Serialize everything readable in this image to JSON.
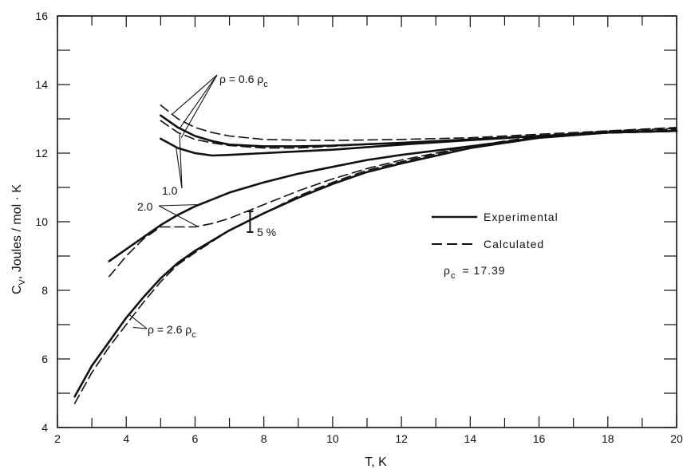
{
  "chart_data": {
    "type": "line",
    "title": "",
    "xlabel": "T, K",
    "ylabel": "C",
    "ylabel_sub": "V",
    "ylabel_rest": ", Joules / mol · K",
    "xlim": [
      2,
      20
    ],
    "ylim": [
      4,
      16
    ],
    "xticks": [
      2,
      4,
      6,
      8,
      10,
      12,
      14,
      16,
      18,
      20
    ],
    "yticks": [
      4,
      6,
      8,
      10,
      12,
      14,
      16
    ],
    "xticks_labels": [
      "2",
      "4",
      "6",
      "8",
      "10",
      "12",
      "14",
      "16",
      "18",
      "20"
    ],
    "yticks_labels": [
      "4",
      "6",
      "8",
      "10",
      "12",
      "14",
      "16"
    ],
    "grid": false,
    "legend": {
      "position": "right",
      "entries": [
        {
          "label": "Experimental",
          "style": "solid"
        },
        {
          "label": "Calculated",
          "style": "dashed"
        }
      ],
      "note_symbol": "ρ",
      "note_sub": "c",
      "note_value": "= 17.39"
    },
    "annotations": {
      "rho06_prefix": "ρ = 0.6 ρ",
      "rho06_sub": "c",
      "rho10": "1.0",
      "rho20": "2.0",
      "rho26_prefix": "ρ = 2.6 ρ",
      "rho26_sub": "c",
      "errorbar": "5 %"
    },
    "series": [
      {
        "name": "0.6",
        "style": "solid",
        "x": [
          5.0,
          5.5,
          6.0,
          6.5,
          7,
          8,
          9,
          10,
          12,
          14,
          16,
          18,
          20
        ],
        "y": [
          13.1,
          12.75,
          12.5,
          12.35,
          12.25,
          12.2,
          12.2,
          12.22,
          12.3,
          12.4,
          12.5,
          12.6,
          12.65
        ]
      },
      {
        "name": "0.6",
        "style": "dashed",
        "x": [
          5.0,
          5.5,
          6.0,
          6.5,
          7,
          8,
          9,
          10,
          12,
          14,
          16,
          18,
          20
        ],
        "y": [
          13.4,
          13.0,
          12.75,
          12.6,
          12.5,
          12.4,
          12.38,
          12.37,
          12.4,
          12.45,
          12.55,
          12.65,
          12.75
        ]
      },
      {
        "name": "1.0",
        "style": "solid",
        "x": [
          5.0,
          5.5,
          6.0,
          6.5,
          7,
          8,
          9,
          10,
          12,
          14,
          16,
          18,
          20
        ],
        "y": [
          12.42,
          12.15,
          12.0,
          11.93,
          11.95,
          12.0,
          12.05,
          12.1,
          12.25,
          12.38,
          12.5,
          12.6,
          12.65
        ]
      },
      {
        "name": "1.0",
        "style": "dashed",
        "x": [
          5.0,
          5.5,
          6.0,
          6.5,
          7,
          8,
          9,
          10,
          12,
          14,
          16,
          18,
          20
        ],
        "y": [
          12.95,
          12.6,
          12.4,
          12.3,
          12.22,
          12.15,
          12.15,
          12.2,
          12.3,
          12.4,
          12.5,
          12.62,
          12.7
        ]
      },
      {
        "name": "2.0",
        "style": "solid",
        "x": [
          3.5,
          4.0,
          4.5,
          5.0,
          5.5,
          6,
          7,
          8,
          9,
          10,
          11,
          12,
          14,
          16,
          18,
          20
        ],
        "y": [
          8.85,
          9.2,
          9.55,
          9.9,
          10.2,
          10.45,
          10.85,
          11.15,
          11.4,
          11.6,
          11.8,
          11.95,
          12.2,
          12.45,
          12.6,
          12.65
        ]
      },
      {
        "name": "2.0",
        "style": "dashed",
        "x": [
          3.5,
          4.0,
          4.5,
          5.0,
          5.5,
          6.0,
          6.5,
          7,
          8,
          9,
          10,
          11,
          12,
          14,
          16,
          18,
          20
        ],
        "y": [
          8.4,
          9.0,
          9.5,
          9.85,
          9.85,
          9.85,
          9.95,
          10.1,
          10.5,
          10.9,
          11.25,
          11.55,
          11.8,
          12.2,
          12.45,
          12.6,
          12.65
        ]
      },
      {
        "name": "2.6",
        "style": "solid",
        "x": [
          2.5,
          3,
          3.5,
          4.0,
          4.5,
          5.0,
          5.5,
          6,
          7,
          8,
          9,
          10,
          11,
          12,
          14,
          16,
          18,
          20
        ],
        "y": [
          4.9,
          5.8,
          6.5,
          7.2,
          7.8,
          8.35,
          8.8,
          9.15,
          9.75,
          10.25,
          10.7,
          11.1,
          11.45,
          11.7,
          12.15,
          12.45,
          12.6,
          12.65
        ]
      },
      {
        "name": "2.6",
        "style": "dashed",
        "x": [
          2.5,
          3,
          3.5,
          4.0,
          4.5,
          5.0,
          5.5,
          6,
          7,
          8,
          9,
          10,
          11,
          12,
          14,
          16,
          18,
          20
        ],
        "y": [
          4.7,
          5.6,
          6.35,
          7.0,
          7.65,
          8.25,
          8.75,
          9.1,
          9.75,
          10.25,
          10.75,
          11.15,
          11.5,
          11.75,
          12.2,
          12.5,
          12.65,
          12.72
        ]
      }
    ],
    "errorbar": {
      "x": 7.6,
      "y_low": 9.7,
      "y_high": 10.3
    }
  }
}
